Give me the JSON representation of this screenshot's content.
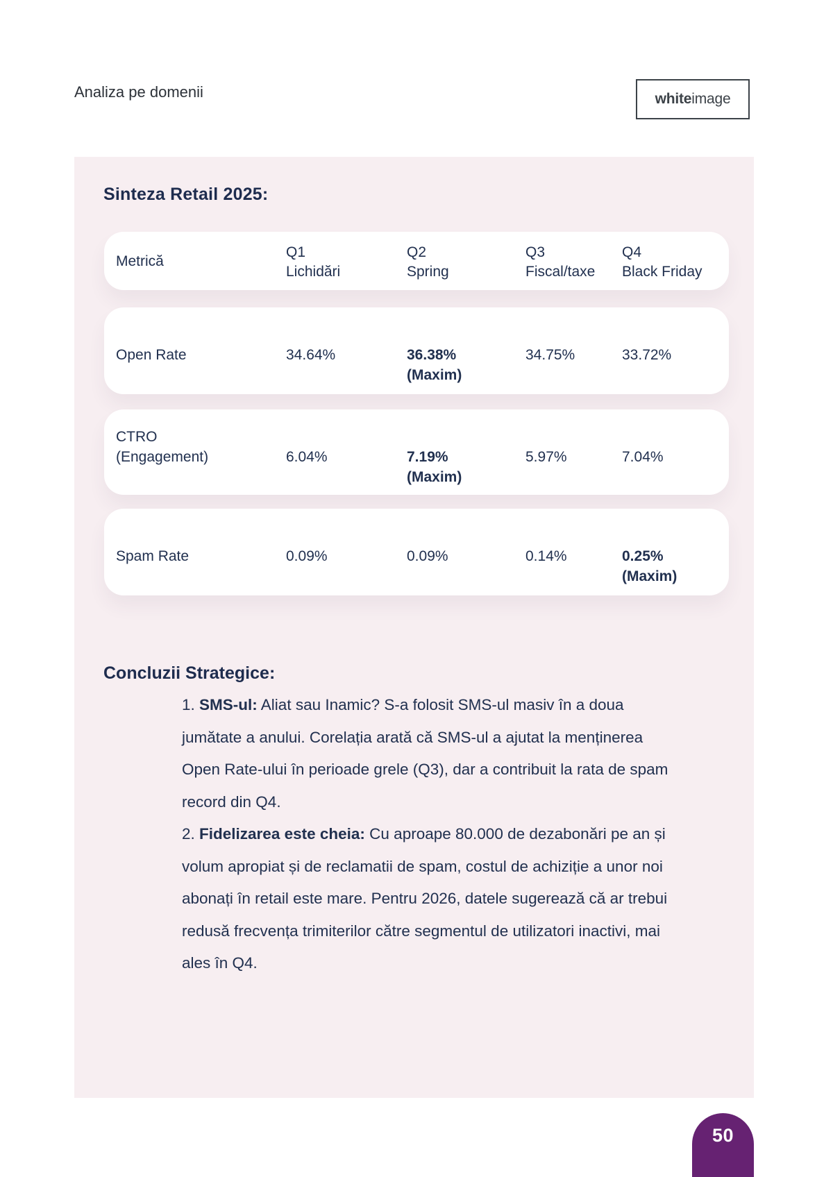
{
  "page": {
    "header_label": "Analiza pe domenii",
    "logo": {
      "bold": "white",
      "light": "image"
    },
    "page_number": "50"
  },
  "colors": {
    "panel_pink": "#f7eef1",
    "ink_navy": "#21304f",
    "accent_purple": "#662272"
  },
  "panel": {
    "table_title": "Sinteza Retail 2025:",
    "table": {
      "header": {
        "metric": "Metrică",
        "columns": [
          {
            "quarter": "Q1",
            "sub": "Lichidări"
          },
          {
            "quarter": "Q2",
            "sub": "Spring"
          },
          {
            "quarter": "Q3",
            "sub": "Fiscal/taxe"
          },
          {
            "quarter": "Q4",
            "sub": "Black Friday"
          }
        ]
      },
      "rows": [
        {
          "label_above": "",
          "label": "Open Rate",
          "values": [
            {
              "main": "34.64%",
              "below": ""
            },
            {
              "main": "36.38%",
              "below": "(Maxim)"
            },
            {
              "main": "34.75%",
              "below": ""
            },
            {
              "main": "33.72%",
              "below": ""
            }
          ]
        },
        {
          "label_above": "CTRO",
          "label": "(Engagement)",
          "values": [
            {
              "main": "6.04%",
              "below": ""
            },
            {
              "main": "7.19%",
              "below": "(Maxim)"
            },
            {
              "main": "5.97%",
              "below": ""
            },
            {
              "main": "7.04%",
              "below": ""
            }
          ]
        },
        {
          "label_above": "",
          "label": "Spam Rate",
          "values": [
            {
              "main": "0.09%",
              "below": ""
            },
            {
              "main": "0.09%",
              "below": ""
            },
            {
              "main": "0.14%",
              "below": ""
            },
            {
              "main": "0.25%",
              "below": "(Maxim)"
            }
          ]
        }
      ]
    },
    "conclusions": {
      "heading": "Concluzii Strategice:",
      "item1": {
        "number": "1.",
        "bold": "SMS-ul:",
        "rest": "Aliat sau Inamic? S-a folosit SMS-ul masiv în a doua",
        "line2": "jumătate a anului. Corelația arată că SMS-ul a ajutat la menținerea",
        "line3": "Open Rate-ului în perioade grele (Q3), dar a contribuit la rata de spam",
        "line4": "record din Q4."
      },
      "item2": {
        "number": "2.",
        "bold": "Fidelizarea este cheia:",
        "rest": "Cu aproape 80.000 de dezabonări pe an și",
        "line2": "volum apropiat și de reclamatii de spam, costul de achiziție a unor noi",
        "line3": "abonați în retail este mare. Pentru 2026, datele sugerează că ar trebui",
        "line4": "redusă frecvența trimiterilor către segmentul de utilizatori inactivi, mai",
        "line5": "ales în Q4."
      }
    }
  }
}
